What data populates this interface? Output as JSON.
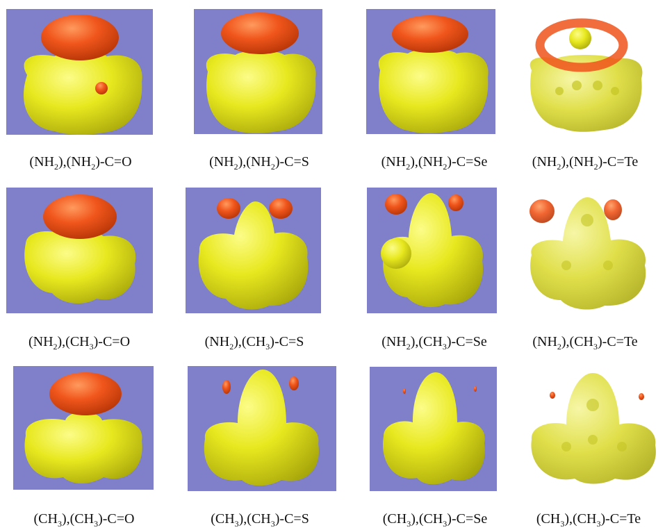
{
  "figure": {
    "colors": {
      "background": "#7f80c9",
      "density": "#eaea22",
      "density_highlight": "#fbfb7a",
      "density_shadow": "#a9a80d",
      "lobe": "#f0541b",
      "lobe_highlight": "#ff8f55",
      "lobe_shadow": "#b93508"
    },
    "rows": [
      {
        "panels": [
          {
            "substituent_1": "(NH",
            "sub_1": "2",
            "substituent_2": "),(NH",
            "sub_2": "2",
            "tail": ")-C=O"
          },
          {
            "substituent_1": "(NH",
            "sub_1": "2",
            "substituent_2": "),(NH",
            "sub_2": "2",
            "tail": ")-C=S"
          },
          {
            "substituent_1": "(NH",
            "sub_1": "2",
            "substituent_2": "),(NH",
            "sub_2": "2",
            "tail": ")-C=Se"
          },
          {
            "substituent_1": "(NH",
            "sub_1": "2",
            "substituent_2": "),(NH",
            "sub_2": "2",
            "tail": ")-C=Te"
          }
        ]
      },
      {
        "panels": [
          {
            "substituent_1": "(NH",
            "sub_1": "2",
            "substituent_2": "),(CH",
            "sub_2": "3",
            "tail": ")-C=O"
          },
          {
            "substituent_1": "(NH",
            "sub_1": "2",
            "substituent_2": "),(CH",
            "sub_2": "3",
            "tail": ")-C=S"
          },
          {
            "substituent_1": "(NH",
            "sub_1": "2",
            "substituent_2": "),(CH",
            "sub_2": "3",
            "tail": ")-C=Se"
          },
          {
            "substituent_1": "(NH",
            "sub_1": "2",
            "substituent_2": "),(CH",
            "sub_2": "3",
            "tail": ")-C=Te"
          }
        ]
      },
      {
        "panels": [
          {
            "substituent_1": "(CH",
            "sub_1": "3",
            "substituent_2": "),(CH",
            "sub_2": "3",
            "tail": ")-C=O"
          },
          {
            "substituent_1": "(CH",
            "sub_1": "3",
            "substituent_2": "),(CH",
            "sub_2": "3",
            "tail": ")-C=S"
          },
          {
            "substituent_1": "(CH",
            "sub_1": "3",
            "substituent_2": "),(CH",
            "sub_2": "3",
            "tail": ")-C=Se"
          },
          {
            "substituent_1": "(CH",
            "sub_1": "3",
            "substituent_2": "),(CH",
            "sub_2": "3",
            "tail": ")-C=Te"
          }
        ]
      }
    ]
  }
}
